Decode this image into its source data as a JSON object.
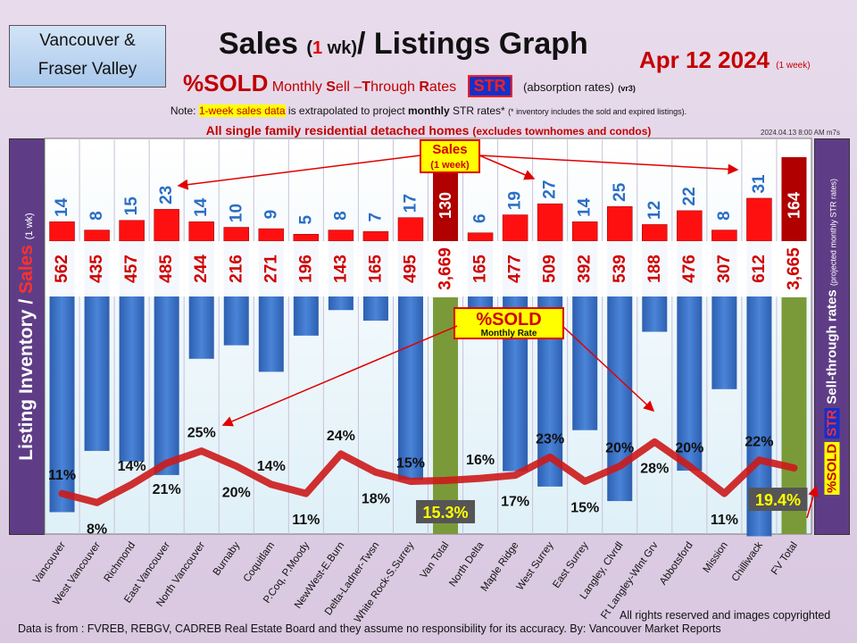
{
  "header": {
    "region_line1": "Vancouver &",
    "region_line2": "Fraser Valley",
    "title_main": "Sales",
    "title_paren": "(1 wk)",
    "title_rest": "/ Listings Graph",
    "date": "Apr 12  2024",
    "date_note": "(1 week)",
    "sold_label": "%SOLD",
    "str_desc": "Monthly Sell –Through Rates",
    "str_badge": "STR",
    "str_paren": "(absorption rates)",
    "version": "(vr3)",
    "note_prefix": "Note:",
    "note_highlight": "1-week sales data",
    "note_mid": "is extrapolated to project",
    "note_bold": "monthly",
    "note_end": "STR rates*",
    "note_small": "(* inventory includes the sold and expired listings).",
    "homes_main": "All single family residential detached homes",
    "homes_paren": "(excludes townhomes and condos)",
    "timestamp": "2024.04.13  8:00 AM m7s"
  },
  "side": {
    "left_a": "Listing Inventory",
    "left_b": "/",
    "left_c": "Sales",
    "left_d": "(1 wk)",
    "right_sold": "%SOLD",
    "right_str": "STR",
    "right_main": "Sell-through  rates",
    "right_small": "(projected monthly STR rates)"
  },
  "callouts": {
    "sales_title": "Sales",
    "sales_sub": "(1 week)",
    "sold_title": "%SOLD",
    "sold_sub": "Monthly Rate"
  },
  "footer": {
    "source": "Data is from : FVREB, REBGV, CADREB Real Estate Board and they assume no responsibility for its accuracy. By: Vancouver  Market Reports",
    "rights": "All rights reserved and  images copyrighted"
  },
  "chart_data": {
    "type": "bar",
    "categories": [
      "Vancouver",
      "West Vancouver",
      "Richmond",
      "East Vancouver",
      "North Vancouver",
      "Burnaby",
      "Coquitlam",
      "P.Coq, P.Moody",
      "NewWest-E.Burn",
      "Delta-Ladner-Twsn",
      "White Rock-S.Surrey",
      "Van Total",
      "North Delta",
      "Maple Ridge",
      "West Surrey",
      "East Surrey",
      "Langley, Clvrdl",
      "Ft Langley-Wlnt Grv",
      "Abbotsford",
      "Mission",
      "Chilliwack",
      "FV Total"
    ],
    "series": [
      {
        "values": [
          562,
          435,
          457,
          485,
          244,
          216,
          271,
          196,
          143,
          165,
          495,
          3669,
          165,
          477,
          509,
          392,
          539,
          188,
          476,
          307,
          612,
          3665
        ]
      },
      {
        "name": "Sales",
        "values": [
          14,
          8,
          15,
          23,
          14,
          10,
          9,
          5,
          8,
          7,
          17,
          130,
          6,
          19,
          27,
          14,
          25,
          12,
          22,
          8,
          31,
          164
        ]
      },
      {
        "name": "%SOLD",
        "values": [
          11,
          8,
          14,
          21,
          25,
          20,
          14,
          11,
          24,
          18,
          15,
          15.3,
          16,
          17,
          23,
          15,
          20,
          28,
          20,
          11,
          22,
          19.4
        ]
      }
    ],
    "totals": [
      "Van Total",
      "FV Total"
    ],
    "inventory_labels": [
      "562",
      "435",
      "457",
      "485",
      "244",
      "216",
      "271",
      "196",
      "143",
      "165",
      "495",
      "3,669",
      "165",
      "477",
      "509",
      "392",
      "539",
      "188",
      "476",
      "307",
      "612",
      "3,665"
    ],
    "sold_labels": [
      "11%",
      "8%",
      "14%",
      "21%",
      "25%",
      "20%",
      "14%",
      "11%",
      "24%",
      "18%",
      "15%",
      "15.3%",
      "16%",
      "17%",
      "23%",
      "15%",
      "20%",
      "28%",
      "20%",
      "11%",
      "22%",
      "19.4%"
    ],
    "colors": {
      "inventory": "#4a84d8",
      "total": "#7a9a3a",
      "sales": "#ff1010",
      "sales_total": "#b00000",
      "sold_line": "#cc1a1a",
      "sold_label": "#111111",
      "total_label_bg": "#555555",
      "total_label_fg": "#ffff00"
    },
    "grid": true
  }
}
